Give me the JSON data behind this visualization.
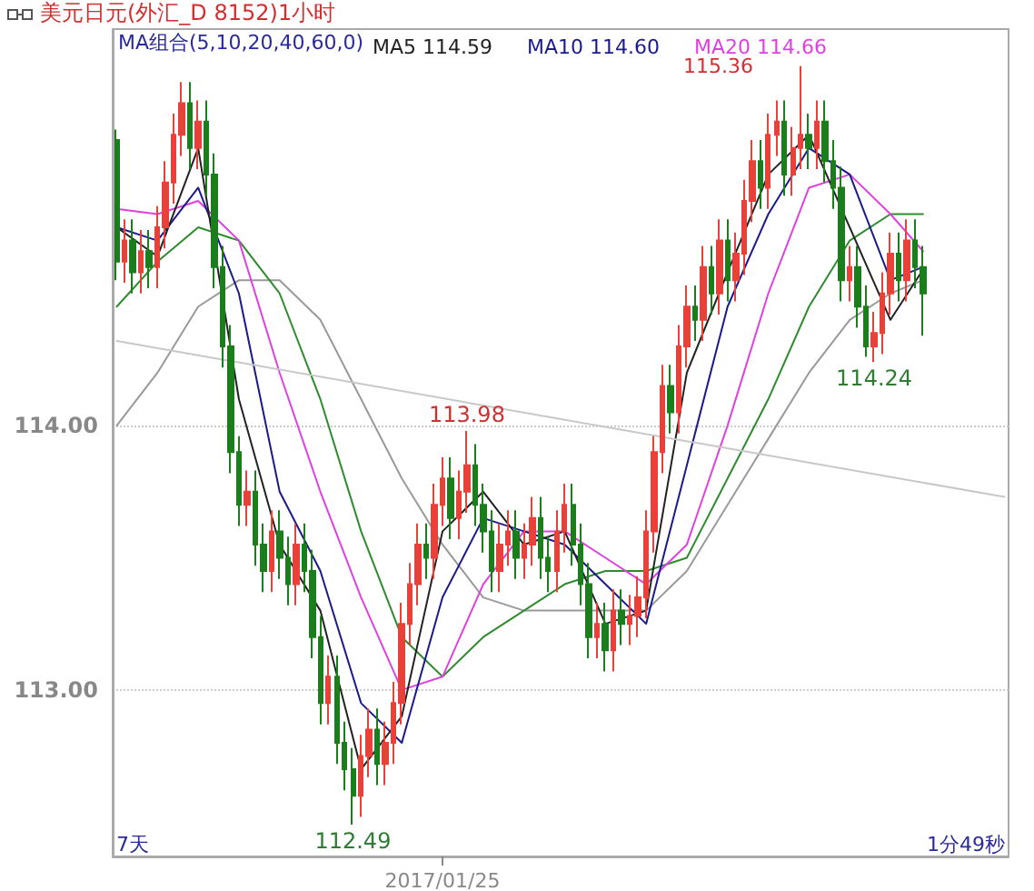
{
  "chart_data": {
    "type": "candlestick",
    "title": "美元日元(外汇_D 8152)1小时",
    "categories": [
      null,
      null,
      null,
      null,
      null,
      null,
      null,
      null,
      null,
      null,
      null,
      null,
      null,
      null,
      null,
      null,
      null,
      null,
      null,
      null,
      null,
      null,
      null,
      null,
      null,
      null,
      null,
      null,
      null,
      null,
      null,
      null,
      null,
      null,
      null,
      null,
      null,
      null,
      null,
      null,
      "2017/01/25",
      null,
      null,
      null,
      null,
      null,
      null,
      null,
      null,
      null,
      null,
      null,
      null,
      null,
      null,
      null,
      null,
      null,
      null,
      null,
      null,
      null,
      null,
      null,
      null,
      null,
      null,
      null,
      null,
      null,
      null,
      null,
      null,
      null,
      null,
      null,
      null,
      null,
      null,
      null,
      null,
      null,
      null,
      null,
      null,
      null,
      null,
      null,
      null,
      null,
      null,
      null,
      null,
      null,
      null,
      null,
      null,
      null,
      null,
      null,
      null,
      null,
      null,
      null,
      null,
      null,
      null,
      null,
      null,
      null
    ],
    "ylim": [
      112.37,
      115.5
    ],
    "yticks": [
      {
        "value": 113,
        "label": "113.00"
      },
      {
        "value": 114,
        "label": "114.00"
      }
    ],
    "grid": "y",
    "legend": "top",
    "marker": "none",
    "line_style": "solid",
    "annotations": [
      {
        "text": "113.98",
        "y": 113.98
      },
      {
        "text": "112.49",
        "y": 112.49
      },
      {
        "text": "114.24",
        "y": 114.24
      },
      "MA组合(5,10,20,40,60,0)",
      "7天",
      "1分49秒",
      "115.36"
    ],
    "series": [
      {
        "ohlc": [
          [
            115.08,
            115.12,
            114.55,
            114.62
          ],
          [
            114.62,
            114.78,
            114.54,
            114.7
          ],
          [
            114.7,
            114.78,
            114.5,
            114.58
          ],
          [
            114.58,
            114.74,
            114.5,
            114.66
          ],
          [
            114.66,
            114.74,
            114.52,
            114.6
          ],
          [
            114.6,
            114.83,
            114.52,
            114.75
          ],
          [
            114.75,
            115.0,
            114.67,
            114.92
          ],
          [
            114.92,
            115.18,
            114.84,
            115.1
          ],
          [
            115.1,
            115.3,
            115.02,
            115.22
          ],
          [
            115.22,
            115.3,
            114.97,
            115.05
          ],
          [
            115.05,
            115.23,
            114.97,
            115.15
          ],
          [
            115.15,
            115.23,
            114.87,
            114.95
          ],
          [
            114.95,
            115.03,
            114.52,
            114.6
          ],
          [
            114.6,
            114.68,
            114.22,
            114.3
          ],
          [
            114.3,
            114.38,
            113.82,
            113.9
          ],
          [
            113.9,
            113.96,
            113.62,
            113.7
          ],
          [
            113.7,
            113.83,
            113.62,
            113.75
          ],
          [
            113.75,
            113.83,
            113.47,
            113.55
          ],
          [
            113.55,
            113.63,
            113.37,
            113.45
          ],
          [
            113.45,
            113.68,
            113.37,
            113.6
          ],
          [
            113.6,
            113.68,
            113.42,
            113.5
          ],
          [
            113.5,
            113.58,
            113.32,
            113.4
          ],
          [
            113.4,
            113.63,
            113.32,
            113.55
          ],
          [
            113.55,
            113.63,
            113.37,
            113.45
          ],
          [
            113.45,
            113.53,
            113.12,
            113.2
          ],
          [
            113.2,
            113.28,
            112.87,
            112.95
          ],
          [
            112.95,
            113.13,
            112.87,
            113.05
          ],
          [
            113.05,
            113.13,
            112.72,
            112.8
          ],
          [
            112.8,
            112.88,
            112.62,
            112.7
          ],
          [
            112.7,
            112.78,
            112.49,
            112.6
          ],
          [
            112.6,
            112.83,
            112.52,
            112.75
          ],
          [
            112.75,
            112.93,
            112.67,
            112.85
          ],
          [
            112.85,
            112.93,
            112.64,
            112.72
          ],
          [
            112.72,
            112.88,
            112.64,
            112.8
          ],
          [
            112.8,
            113.03,
            112.72,
            112.95
          ],
          [
            112.95,
            113.33,
            112.87,
            113.25
          ],
          [
            113.25,
            113.48,
            113.17,
            113.4
          ],
          [
            113.4,
            113.63,
            113.32,
            113.55
          ],
          [
            113.55,
            113.63,
            113.42,
            113.5
          ],
          [
            113.5,
            113.78,
            113.42,
            113.7
          ],
          [
            113.7,
            113.88,
            113.62,
            113.8
          ],
          [
            113.8,
            113.88,
            113.57,
            113.65
          ],
          [
            113.65,
            113.83,
            113.57,
            113.75
          ],
          [
            113.75,
            113.98,
            113.67,
            113.85
          ],
          [
            113.85,
            113.93,
            113.62,
            113.7
          ],
          [
            113.7,
            113.78,
            113.52,
            113.6
          ],
          [
            113.6,
            113.68,
            113.37,
            113.45
          ],
          [
            113.45,
            113.63,
            113.37,
            113.55
          ],
          [
            113.55,
            113.68,
            113.47,
            113.6
          ],
          [
            113.6,
            113.68,
            113.42,
            113.5
          ],
          [
            113.5,
            113.63,
            113.42,
            113.55
          ],
          [
            113.55,
            113.73,
            113.47,
            113.65
          ],
          [
            113.65,
            113.73,
            113.42,
            113.5
          ],
          [
            113.5,
            113.58,
            113.37,
            113.45
          ],
          [
            113.45,
            113.68,
            113.37,
            113.6
          ],
          [
            113.6,
            113.78,
            113.52,
            113.7
          ],
          [
            113.7,
            113.78,
            113.47,
            113.55
          ],
          [
            113.55,
            113.63,
            113.32,
            113.4
          ],
          [
            113.4,
            113.48,
            113.12,
            113.2
          ],
          [
            113.2,
            113.33,
            113.12,
            113.25
          ],
          [
            113.25,
            113.33,
            113.07,
            113.15
          ],
          [
            113.15,
            113.38,
            113.07,
            113.3
          ],
          [
            113.3,
            113.38,
            113.17,
            113.25
          ],
          [
            113.25,
            113.36,
            113.17,
            113.28
          ],
          [
            113.28,
            113.43,
            113.2,
            113.35
          ],
          [
            113.35,
            113.68,
            113.27,
            113.6
          ],
          [
            113.6,
            113.96,
            113.52,
            113.9
          ],
          [
            113.9,
            114.23,
            113.82,
            114.15
          ],
          [
            114.15,
            114.23,
            113.97,
            114.05
          ],
          [
            114.05,
            114.38,
            113.97,
            114.3
          ],
          [
            114.3,
            114.53,
            114.22,
            114.45
          ],
          [
            114.45,
            114.53,
            114.32,
            114.4
          ],
          [
            114.4,
            114.68,
            114.32,
            114.6
          ],
          [
            114.6,
            114.68,
            114.42,
            114.5
          ],
          [
            114.5,
            114.78,
            114.42,
            114.7
          ],
          [
            114.7,
            114.78,
            114.47,
            114.55
          ],
          [
            114.55,
            114.73,
            114.47,
            114.65
          ],
          [
            114.65,
            114.93,
            114.57,
            114.85
          ],
          [
            114.85,
            115.08,
            114.77,
            115.0
          ],
          [
            115.0,
            115.08,
            114.82,
            114.9
          ],
          [
            114.9,
            115.18,
            114.82,
            115.1
          ],
          [
            115.1,
            115.23,
            115.02,
            115.15
          ],
          [
            115.15,
            115.23,
            114.87,
            114.95
          ],
          [
            114.95,
            115.13,
            114.87,
            115.05
          ],
          [
            115.05,
            115.36,
            114.97,
            115.1
          ],
          [
            115.1,
            115.18,
            114.97,
            115.05
          ],
          [
            115.05,
            115.23,
            114.97,
            115.15
          ],
          [
            115.15,
            115.23,
            114.92,
            115.0
          ],
          [
            115.0,
            115.08,
            114.82,
            114.9
          ],
          [
            114.9,
            114.98,
            114.47,
            114.55
          ],
          [
            114.55,
            114.68,
            114.47,
            114.6
          ],
          [
            114.6,
            114.68,
            114.37,
            114.45
          ],
          [
            114.45,
            114.53,
            114.26,
            114.3
          ],
          [
            114.3,
            114.43,
            114.24,
            114.35
          ],
          [
            114.35,
            114.58,
            114.27,
            114.5
          ],
          [
            114.5,
            114.73,
            114.42,
            114.65
          ],
          [
            114.65,
            114.73,
            114.47,
            114.55
          ],
          [
            114.55,
            114.78,
            114.47,
            114.7
          ],
          [
            114.7,
            114.78,
            114.52,
            114.6
          ],
          [
            114.6,
            114.68,
            114.34,
            114.5
          ],
          null,
          null,
          null,
          null,
          null,
          null,
          null,
          null,
          null,
          null
        ],
        "colors": [
          "#1b7d1b",
          "#e8413a",
          "#1b7d1b",
          "#e8413a",
          "#1b7d1b",
          "#e8413a",
          "#e8413a",
          "#e8413a",
          "#e8413a",
          "#1b7d1b",
          "#e8413a",
          "#1b7d1b",
          "#1b7d1b",
          "#1b7d1b",
          "#1b7d1b",
          "#1b7d1b",
          "#e8413a",
          "#1b7d1b",
          "#1b7d1b",
          "#e8413a",
          "#1b7d1b",
          "#1b7d1b",
          "#e8413a",
          "#1b7d1b",
          "#1b7d1b",
          "#1b7d1b",
          "#e8413a",
          "#1b7d1b",
          "#1b7d1b",
          "#1b7d1b",
          "#e8413a",
          "#e8413a",
          "#1b7d1b",
          "#e8413a",
          "#e8413a",
          "#e8413a",
          "#e8413a",
          "#e8413a",
          "#1b7d1b",
          "#e8413a",
          "#e8413a",
          "#1b7d1b",
          "#e8413a",
          "#e8413a",
          "#1b7d1b",
          "#1b7d1b",
          "#1b7d1b",
          "#e8413a",
          "#e8413a",
          "#1b7d1b",
          "#e8413a",
          "#e8413a",
          "#1b7d1b",
          "#1b7d1b",
          "#e8413a",
          "#e8413a",
          "#1b7d1b",
          "#1b7d1b",
          "#1b7d1b",
          "#e8413a",
          "#1b7d1b",
          "#e8413a",
          "#1b7d1b",
          "#e8413a",
          "#e8413a",
          "#e8413a",
          "#e8413a",
          "#e8413a",
          "#1b7d1b",
          "#e8413a",
          "#e8413a",
          "#1b7d1b",
          "#e8413a",
          "#1b7d1b",
          "#e8413a",
          "#1b7d1b",
          "#e8413a",
          "#e8413a",
          "#e8413a",
          "#1b7d1b",
          "#e8413a",
          "#e8413a",
          "#1b7d1b",
          "#e8413a",
          "#e8413a",
          "#1b7d1b",
          "#e8413a",
          "#1b7d1b",
          "#1b7d1b",
          "#1b7d1b",
          "#e8413a",
          "#1b7d1b",
          "#1b7d1b",
          "#e8413a",
          "#e8413a",
          "#e8413a",
          "#1b7d1b",
          "#e8413a",
          "#1b7d1b",
          "#1b7d1b",
          null,
          null,
          null,
          null,
          null,
          null,
          null,
          null,
          null,
          null
        ]
      },
      {
        "type": "line",
        "color": "#999999",
        "values": [
          114.0,
          null,
          null,
          null,
          null,
          114.2,
          null,
          null,
          null,
          null,
          114.45,
          null,
          null,
          null,
          null,
          114.55,
          null,
          null,
          null,
          null,
          114.55,
          null,
          null,
          null,
          null,
          114.4,
          null,
          null,
          null,
          null,
          114.1,
          null,
          null,
          null,
          null,
          113.8,
          null,
          null,
          null,
          null,
          113.55,
          null,
          null,
          null,
          null,
          113.35,
          null,
          null,
          null,
          null,
          113.3,
          null,
          null,
          null,
          null,
          113.3,
          null,
          null,
          null,
          null,
          113.3,
          null,
          null,
          null,
          null,
          113.3,
          null,
          null,
          null,
          null,
          113.45,
          null,
          null,
          null,
          null,
          113.7,
          null,
          null,
          null,
          null,
          113.95,
          null,
          null,
          null,
          null,
          114.2,
          null,
          null,
          null,
          null,
          114.4,
          null,
          null,
          null,
          null,
          114.5,
          null,
          null,
          null,
          114.55,
          null,
          null,
          null,
          null,
          null,
          null,
          null,
          null,
          null,
          null
        ]
      },
      {
        "type": "line",
        "color": "#2e8b2e",
        "values": [
          114.45,
          null,
          null,
          null,
          null,
          114.62,
          null,
          null,
          null,
          null,
          114.75,
          null,
          null,
          null,
          null,
          114.7,
          null,
          null,
          null,
          null,
          114.5,
          null,
          null,
          null,
          null,
          114.1,
          null,
          null,
          null,
          null,
          113.6,
          null,
          null,
          null,
          null,
          113.2,
          null,
          null,
          null,
          null,
          113.05,
          null,
          null,
          null,
          null,
          113.2,
          null,
          null,
          null,
          null,
          113.3,
          null,
          null,
          null,
          null,
          113.4,
          null,
          null,
          null,
          null,
          113.45,
          null,
          null,
          null,
          null,
          113.45,
          null,
          null,
          null,
          null,
          113.5,
          null,
          null,
          null,
          null,
          113.8,
          null,
          null,
          null,
          null,
          114.1,
          null,
          null,
          null,
          null,
          114.45,
          null,
          null,
          null,
          null,
          114.7,
          null,
          null,
          null,
          null,
          114.8,
          null,
          null,
          null,
          114.8,
          null,
          null,
          null,
          null,
          null,
          null,
          null,
          null,
          null,
          null
        ]
      },
      {
        "type": "line",
        "name": "MA20 114.66",
        "color": "#e040e0",
        "values": [
          114.82,
          null,
          null,
          null,
          null,
          114.8,
          null,
          null,
          null,
          null,
          114.85,
          null,
          null,
          null,
          null,
          114.7,
          null,
          null,
          null,
          null,
          114.2,
          null,
          null,
          null,
          null,
          113.75,
          null,
          null,
          null,
          null,
          113.35,
          null,
          null,
          null,
          null,
          113.0,
          null,
          null,
          null,
          null,
          113.05,
          null,
          null,
          null,
          null,
          113.4,
          null,
          null,
          null,
          null,
          113.6,
          null,
          null,
          null,
          null,
          113.6,
          null,
          null,
          null,
          null,
          113.5,
          null,
          null,
          null,
          null,
          113.4,
          null,
          null,
          null,
          null,
          113.55,
          null,
          null,
          null,
          null,
          114.0,
          null,
          null,
          null,
          null,
          114.5,
          null,
          null,
          null,
          null,
          114.9,
          null,
          null,
          null,
          null,
          114.95,
          null,
          null,
          null,
          null,
          114.8,
          null,
          null,
          null,
          114.66,
          null,
          null,
          null,
          null,
          null,
          null,
          null,
          null,
          null,
          null
        ]
      },
      {
        "type": "line",
        "name": "MA10 114.60",
        "color": "#1a1a8c",
        "values": [
          114.75,
          null,
          null,
          null,
          null,
          114.7,
          null,
          null,
          null,
          null,
          114.9,
          null,
          null,
          null,
          null,
          114.5,
          null,
          null,
          null,
          null,
          113.75,
          null,
          null,
          null,
          null,
          113.45,
          null,
          null,
          null,
          null,
          112.95,
          null,
          null,
          null,
          null,
          112.8,
          null,
          null,
          null,
          null,
          113.35,
          null,
          null,
          null,
          null,
          113.65,
          null,
          null,
          null,
          null,
          113.6,
          null,
          null,
          null,
          null,
          113.55,
          null,
          null,
          null,
          null,
          113.4,
          null,
          null,
          null,
          null,
          113.25,
          null,
          null,
          null,
          null,
          113.85,
          null,
          null,
          null,
          null,
          114.45,
          null,
          null,
          null,
          null,
          114.8,
          null,
          null,
          null,
          null,
          115.05,
          null,
          null,
          null,
          null,
          114.95,
          null,
          null,
          null,
          null,
          114.55,
          null,
          null,
          null,
          114.6,
          null,
          null,
          null,
          null,
          null,
          null,
          null,
          null,
          null,
          null
        ]
      },
      {
        "type": "line",
        "name": "MA5 114.59",
        "color": "#222222",
        "values": [
          114.75,
          null,
          null,
          null,
          null,
          114.64,
          null,
          null,
          null,
          null,
          115.05,
          null,
          null,
          null,
          null,
          114.1,
          null,
          null,
          null,
          null,
          113.55,
          null,
          null,
          null,
          null,
          113.3,
          null,
          null,
          null,
          null,
          112.7,
          null,
          null,
          null,
          null,
          112.9,
          null,
          null,
          null,
          null,
          113.6,
          null,
          null,
          null,
          null,
          113.75,
          null,
          null,
          null,
          null,
          113.55,
          null,
          null,
          null,
          null,
          113.6,
          null,
          null,
          null,
          null,
          113.25,
          null,
          null,
          null,
          null,
          113.3,
          null,
          null,
          null,
          null,
          114.2,
          null,
          null,
          null,
          null,
          114.58,
          null,
          null,
          null,
          null,
          114.95,
          null,
          null,
          null,
          null,
          115.1,
          null,
          null,
          null,
          null,
          114.75,
          null,
          null,
          null,
          null,
          114.4,
          null,
          null,
          null,
          114.59,
          null,
          null,
          null,
          null,
          null,
          null,
          null,
          null,
          null,
          null
        ]
      },
      {
        "type": "line",
        "color": "#c8c8c8",
        "values": [
          114.32,
          null,
          null,
          null,
          null,
          null,
          null,
          null,
          null,
          null,
          null,
          null,
          null,
          null,
          null,
          null,
          null,
          null,
          null,
          null,
          null,
          null,
          null,
          null,
          null,
          null,
          null,
          null,
          null,
          null,
          null,
          null,
          null,
          null,
          null,
          null,
          null,
          null,
          null,
          null,
          null,
          null,
          null,
          null,
          null,
          null,
          null,
          null,
          null,
          null,
          null,
          null,
          null,
          null,
          null,
          null,
          null,
          null,
          null,
          null,
          null,
          null,
          null,
          null,
          null,
          null,
          null,
          null,
          null,
          null,
          null,
          null,
          null,
          null,
          null,
          null,
          null,
          null,
          null,
          null,
          null,
          null,
          null,
          null,
          null,
          null,
          null,
          null,
          null,
          null,
          null,
          null,
          null,
          null,
          null,
          null,
          null,
          null,
          null,
          null,
          null,
          null,
          null,
          null,
          null,
          null,
          null,
          null,
          null,
          113.73
        ]
      }
    ]
  }
}
